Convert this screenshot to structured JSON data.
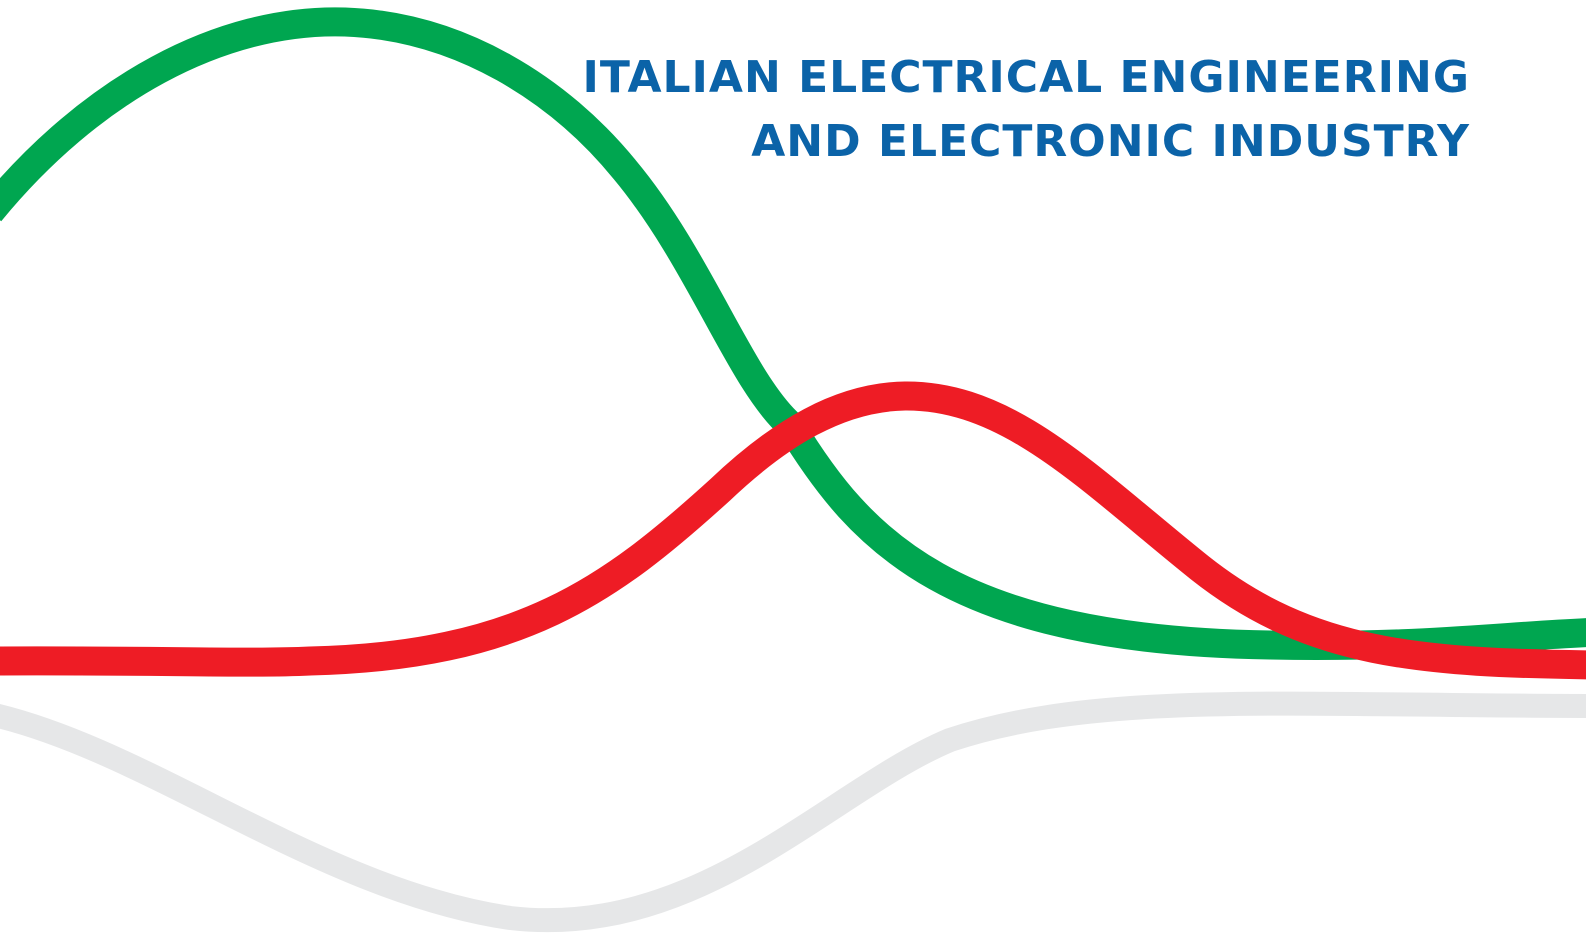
{
  "title": {
    "line1": "ITALIAN ELECTRICAL ENGINEERING",
    "line2": "AND ELECTRONIC INDUSTRY"
  },
  "colors": {
    "background": "#ffffff",
    "title": "#0b63a8",
    "green_curve": "#00a650",
    "red_curve": "#ee1c25",
    "grey_curve": "#e6e7e8"
  },
  "curves": [
    {
      "name": "green-curve",
      "color_key": "green_curve"
    },
    {
      "name": "red-curve",
      "color_key": "red_curve"
    },
    {
      "name": "grey-curve",
      "color_key": "grey_curve"
    }
  ]
}
